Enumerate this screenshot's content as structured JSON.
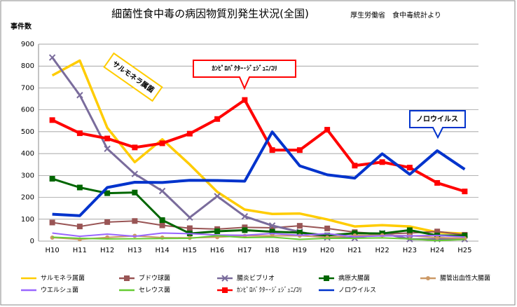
{
  "chart_data": {
    "type": "line",
    "title": "細菌性食中毒の病因物質別発生状況(全国)",
    "subtitle": "厚生労働省　食中毒統計より",
    "y_label": "事件数",
    "categories": [
      "H10",
      "H11",
      "H12",
      "H13",
      "H14",
      "H15",
      "H16",
      "H17",
      "H18",
      "H19",
      "H20",
      "H21",
      "H22",
      "H23",
      "H24",
      "H25"
    ],
    "ylim": [
      0,
      900
    ],
    "yticks": [
      0,
      100,
      200,
      300,
      400,
      500,
      600,
      700,
      800,
      900
    ],
    "grid": true,
    "series": [
      {
        "name": "サルモネラ属菌",
        "color": "#ffcc00",
        "marker": null,
        "width": 3.5,
        "values": [
          757,
          825,
          518,
          361,
          465,
          350,
          225,
          144,
          124,
          126,
          99,
          67,
          73,
          67,
          40,
          34
        ]
      },
      {
        "name": "ブドウ球菌",
        "color": "#995555",
        "marker": "square",
        "width": 2,
        "values": [
          85,
          67,
          87,
          92,
          72,
          59,
          55,
          63,
          61,
          70,
          58,
          41,
          33,
          37,
          44,
          29
        ]
      },
      {
        "name": "腸炎ビブリオ",
        "color": "#7a6c9c",
        "marker": "x",
        "width": 3,
        "values": [
          839,
          667,
          422,
          307,
          229,
          108,
          205,
          113,
          71,
          42,
          17,
          14,
          36,
          9,
          9,
          9
        ]
      },
      {
        "name": "病原大腸菌",
        "color": "#006600",
        "marker": "square",
        "width": 3,
        "values": [
          285,
          245,
          219,
          222,
          96,
          35,
          45,
          50,
          43,
          39,
          26,
          36,
          35,
          50,
          26,
          25
        ]
      },
      {
        "name": "腸管出血性大腸菌",
        "color": "#cc9966",
        "marker": "circle",
        "width": 2,
        "values": [
          16,
          8,
          17,
          24,
          16,
          15,
          18,
          24,
          24,
          25,
          17,
          26,
          27,
          25,
          16,
          13
        ]
      },
      {
        "name": "ウエルシュ菌",
        "color": "#9966ff",
        "marker": null,
        "width": 2,
        "values": [
          37,
          22,
          32,
          22,
          37,
          34,
          28,
          27,
          35,
          27,
          34,
          20,
          24,
          24,
          26,
          19
        ]
      },
      {
        "name": "セレウス菌",
        "color": "#66cc33",
        "marker": null,
        "width": 2,
        "values": [
          18,
          13,
          10,
          11,
          12,
          13,
          25,
          16,
          18,
          8,
          13,
          13,
          15,
          10,
          2,
          8
        ]
      },
      {
        "name": "ｶﾝﾋﾟﾛﾊﾞｸﾀｰ･ｼﾞｪｼﾞｭﾆ/ｺﾘ",
        "color": "#ff0000",
        "marker": "square",
        "width": 4,
        "values": [
          553,
          493,
          469,
          428,
          447,
          491,
          558,
          645,
          416,
          416,
          509,
          345,
          361,
          336,
          266,
          227
        ]
      },
      {
        "name": "ノロウイルス",
        "color": "#0033cc",
        "marker": null,
        "width": 4,
        "values": [
          123,
          116,
          245,
          269,
          268,
          278,
          277,
          274,
          499,
          344,
          303,
          288,
          399,
          305,
          413,
          328
        ]
      }
    ],
    "annotations": [
      {
        "text": "サルモネラ属菌",
        "color": "#ffcc00"
      },
      {
        "text": "ｶﾝﾋﾟﾛﾊﾞｸﾀｰ･ｼﾞｪｼﾞｭﾆ/ｺﾘ",
        "color": "#ff0000"
      },
      {
        "text": "ノロウイルス",
        "color": "#0033cc"
      }
    ]
  }
}
